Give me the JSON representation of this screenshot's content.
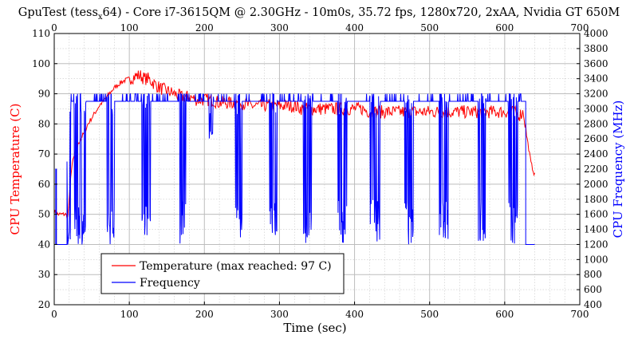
{
  "chart_data": {
    "type": "line",
    "title": "GpuTest (tess_x64) - Core i7-3615QM @ 2.30GHz - 10m0s, 35.72 fps, 1280x720, 2xAA, Nvidia GT 650M",
    "title_parts": {
      "pre": "GpuTest (tess",
      "sub": "x",
      "post": "64) - Core i7-3615QM @ 2.30GHz - 10m0s, 35.72 fps, 1280x720, 2xAA, Nvidia GT 650M"
    },
    "xlabel": "Time (sec)",
    "ylabel_left": "CPU Temperature (C)",
    "ylabel_right": "CPU Frequency (MHz)",
    "xlim": [
      0,
      700
    ],
    "ylim_left": [
      20,
      110
    ],
    "ylim_right": [
      400,
      4000
    ],
    "x_ticks": [
      0,
      100,
      200,
      300,
      400,
      500,
      600,
      700
    ],
    "y_left_ticks": [
      20,
      30,
      40,
      50,
      60,
      70,
      80,
      90,
      100,
      110
    ],
    "y_right_ticks": [
      400,
      600,
      800,
      1000,
      1200,
      1400,
      1600,
      1800,
      2000,
      2200,
      2400,
      2600,
      2800,
      3000,
      3200,
      3400,
      3600,
      3800,
      4000
    ],
    "grid": true,
    "legend_position": "bottom-left",
    "colors": {
      "temperature": "#ff0000",
      "frequency": "#0000ff",
      "grid": "#bfbfbf"
    },
    "series": [
      {
        "name": "Temperature (max reached: 97 C)",
        "axis": "left",
        "x": [
          0,
          5,
          10,
          15,
          18,
          20,
          22,
          25,
          30,
          35,
          40,
          45,
          50,
          60,
          70,
          80,
          90,
          100,
          110,
          115,
          120,
          125,
          130,
          140,
          150,
          160,
          170,
          180,
          190,
          200,
          210,
          220,
          230,
          240,
          250,
          260,
          270,
          280,
          290,
          300,
          310,
          320,
          330,
          340,
          350,
          360,
          370,
          380,
          390,
          400,
          410,
          420,
          430,
          440,
          450,
          460,
          470,
          480,
          490,
          500,
          510,
          520,
          530,
          540,
          550,
          560,
          570,
          580,
          590,
          600,
          610,
          620,
          625,
          630,
          635,
          640
        ],
        "values": [
          51,
          50,
          50,
          50,
          49,
          55,
          63,
          68,
          72,
          75,
          77,
          80,
          82,
          86,
          89,
          92,
          94,
          95,
          96,
          96,
          95,
          95,
          94,
          92,
          91,
          90,
          89,
          89,
          88,
          88,
          88,
          87,
          87,
          87,
          87,
          86,
          86,
          86,
          86,
          86,
          86,
          86,
          85,
          85,
          85,
          85,
          85,
          85,
          85,
          85,
          85,
          84,
          84,
          84,
          84,
          84,
          84,
          84,
          84,
          84,
          84,
          84,
          84,
          84,
          84,
          84,
          84,
          84,
          84,
          84,
          84,
          83,
          84,
          75,
          67,
          63
        ]
      },
      {
        "name": "Frequency",
        "axis": "right",
        "base_value": 3200,
        "idle_value": 1200,
        "start_x": 20,
        "end_x": 628,
        "tail_end_x": 640,
        "dip_regions": [
          {
            "x_start": 20,
            "x_end": 22,
            "min": 1200
          },
          {
            "x_start": 26,
            "x_end": 42,
            "min": 1200
          },
          {
            "x_start": 70,
            "x_end": 80,
            "min": 1200
          },
          {
            "x_start": 117,
            "x_end": 128,
            "min": 1200
          },
          {
            "x_start": 167,
            "x_end": 175,
            "min": 1200
          },
          {
            "x_start": 206,
            "x_end": 212,
            "min": 2600
          },
          {
            "x_start": 240,
            "x_end": 250,
            "min": 1200
          },
          {
            "x_start": 287,
            "x_end": 297,
            "min": 1200
          },
          {
            "x_start": 332,
            "x_end": 343,
            "min": 1200
          },
          {
            "x_start": 378,
            "x_end": 390,
            "min": 1200
          },
          {
            "x_start": 420,
            "x_end": 434,
            "min": 1200
          },
          {
            "x_start": 467,
            "x_end": 478,
            "min": 1200
          },
          {
            "x_start": 513,
            "x_end": 525,
            "min": 1200
          },
          {
            "x_start": 565,
            "x_end": 575,
            "min": 1200
          },
          {
            "x_start": 605,
            "x_end": 617,
            "min": 1200
          }
        ]
      }
    ]
  }
}
